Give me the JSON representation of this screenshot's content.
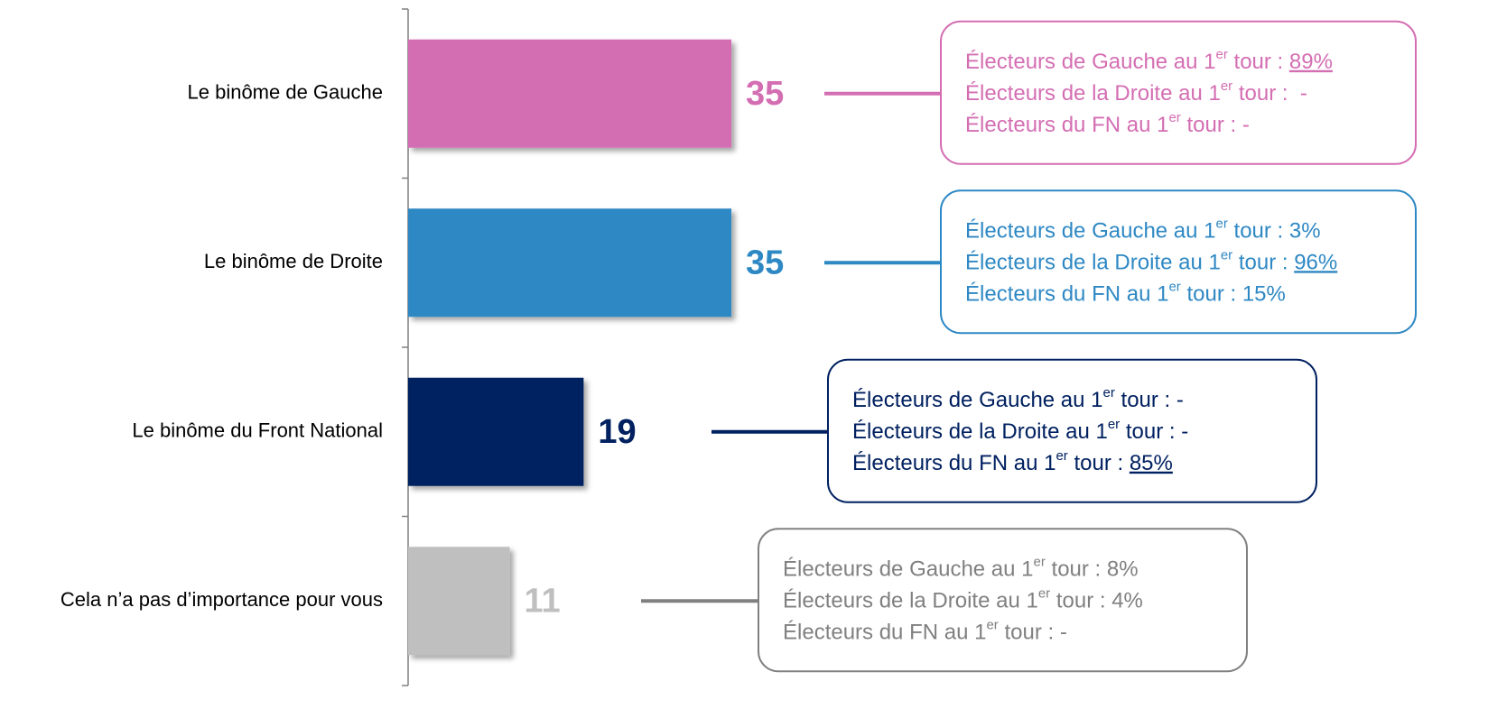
{
  "chart_data": {
    "type": "bar",
    "orientation": "horizontal",
    "categories": [
      "Le binôme de Gauche",
      "Le binôme de Droite",
      "Le binôme du Front National",
      "Cela n’a pas d’importance pour vous"
    ],
    "values": [
      35,
      35,
      19,
      11
    ],
    "colors": [
      "#d46eb3",
      "#2e88c4",
      "#002060",
      "#bfbfbf"
    ],
    "xlim": [
      0,
      100
    ],
    "annotations": [
      {
        "color": "#d46eb3",
        "underline": 0,
        "lines": [
          {
            "pre": "Électeurs de Gauche au 1",
            "sup": "er",
            "post": " tour : ",
            "value": "89%"
          },
          {
            "pre": "Électeurs de la Droite au 1",
            "sup": "er",
            "post": " tour :  ",
            "value": "-"
          },
          {
            "pre": "Électeurs du FN au 1",
            "sup": "er",
            "post": " tour : ",
            "value": "-"
          }
        ]
      },
      {
        "color": "#2e88c4",
        "underline": 1,
        "lines": [
          {
            "pre": "Électeurs de Gauche au 1",
            "sup": "er",
            "post": " tour : ",
            "value": "3%"
          },
          {
            "pre": "Électeurs de la Droite au 1",
            "sup": "er",
            "post": " tour : ",
            "value": "96%"
          },
          {
            "pre": "Électeurs du FN au 1",
            "sup": "er",
            "post": " tour : ",
            "value": "15%"
          }
        ]
      },
      {
        "color": "#002060",
        "underline": 2,
        "lines": [
          {
            "pre": "Électeurs de Gauche au 1",
            "sup": "er",
            "post": " tour : ",
            "value": "-"
          },
          {
            "pre": "Électeurs de la Droite au 1",
            "sup": "er",
            "post": " tour : ",
            "value": "-"
          },
          {
            "pre": "Électeurs du FN au 1",
            "sup": "er",
            "post": " tour : ",
            "value": "85%"
          }
        ]
      },
      {
        "color": "#808080",
        "lines": [
          {
            "pre": "Électeurs de Gauche au 1",
            "sup": "er",
            "post": " tour : ",
            "value": "8%"
          },
          {
            "pre": "Électeurs de la Droite au 1",
            "sup": "er",
            "post": " tour : ",
            "value": "4%"
          },
          {
            "pre": "Électeurs du FN au 1",
            "sup": "er",
            "post": " tour : ",
            "value": "-"
          }
        ]
      }
    ]
  }
}
